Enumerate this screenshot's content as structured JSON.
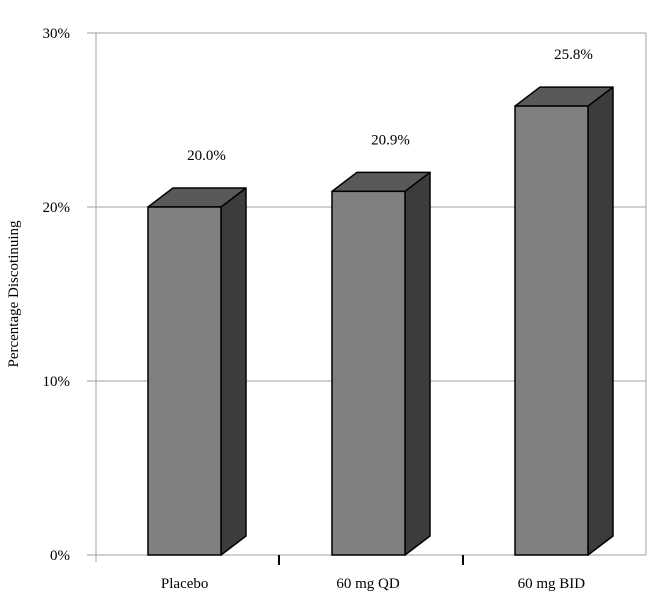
{
  "chart_data": {
    "type": "bar",
    "style": "3d-column",
    "title": "",
    "xlabel": "",
    "ylabel": "Percentage Discotinuing",
    "categories": [
      "Placebo",
      "60 mg QD",
      "60 mg BID"
    ],
    "values": [
      20.0,
      20.9,
      25.8
    ],
    "value_labels": [
      "20.0%",
      "20.9%",
      "25.8%"
    ],
    "ylim": [
      0,
      30
    ],
    "yticks": [
      0,
      10,
      20,
      30
    ],
    "ytick_labels": [
      "0%",
      "10%",
      "20%",
      "30%"
    ],
    "grid": true,
    "legend": null,
    "colors": {
      "bar_front": "#808080",
      "bar_top": "#595959",
      "bar_side": "#3c3c3c",
      "bar_edge": "#000000",
      "gridline": "#a0a0a0"
    }
  }
}
